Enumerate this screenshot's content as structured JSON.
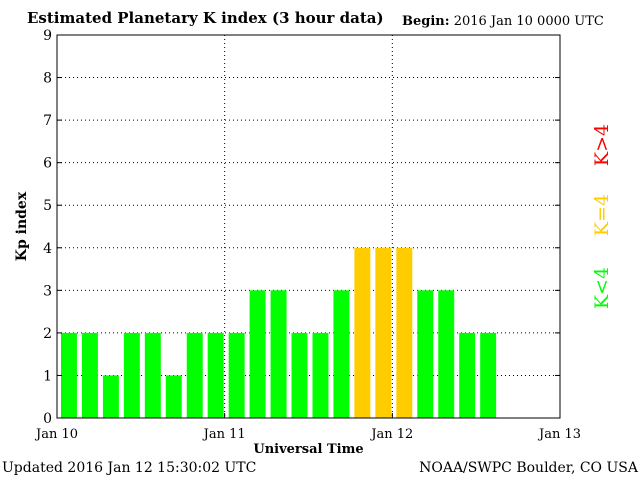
{
  "header": {
    "title": "Estimated Planetary K index (3 hour data)",
    "begin_label": "Begin:",
    "begin_value": "2016 Jan 10 0000 UTC"
  },
  "footer": {
    "updated_label": "Updated",
    "updated_value": "2016 Jan 12 15:30:02 UTC",
    "source": "NOAA/SWPC Boulder, CO USA"
  },
  "colors": {
    "low": "#00ff00",
    "moderate": "#ffcc00",
    "high": "#ff0000",
    "grid": "#000000"
  },
  "chart_data": {
    "type": "bar",
    "xlabel": "Universal Time",
    "ylabel": "Kp index",
    "ylim": [
      0,
      9
    ],
    "yticks": [
      0,
      1,
      2,
      3,
      4,
      5,
      6,
      7,
      8,
      9
    ],
    "xticks": [
      "Jan 10",
      "Jan 11",
      "Jan 12",
      "Jan 13"
    ],
    "slots_per_day": 8,
    "days": 3,
    "grid": true,
    "values": [
      2,
      2,
      1,
      2,
      2,
      1,
      2,
      2,
      2,
      3,
      3,
      2,
      2,
      3,
      4,
      4,
      4,
      3,
      3,
      2,
      2
    ],
    "legend": [
      {
        "label": "K<4",
        "level": "low"
      },
      {
        "label": "K=4",
        "level": "moderate"
      },
      {
        "label": "K>4",
        "level": "high"
      }
    ]
  }
}
